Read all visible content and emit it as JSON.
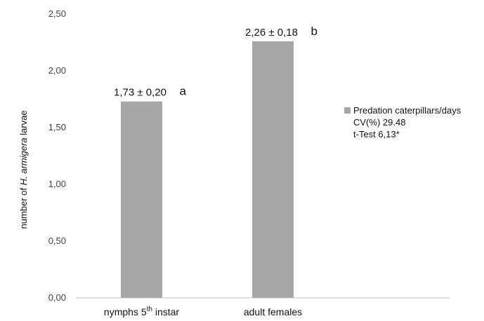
{
  "chart_data": {
    "type": "bar",
    "categories": [
      "nymphs 5th instar",
      "adult females"
    ],
    "category_parts": [
      {
        "main": "nymphs 5",
        "sup": "th",
        "rest": " instar"
      },
      {
        "main": "adult females",
        "sup": "",
        "rest": ""
      }
    ],
    "values": [
      1.73,
      2.26
    ],
    "data_labels": [
      "1,73 ± 0,20",
      "2,26 ± 0,18"
    ],
    "significance_letters": [
      "a",
      "b"
    ],
    "ylabel": {
      "before": "number of ",
      "italic": "H. armigera",
      "after": " larvae"
    },
    "ylim": [
      0,
      2.5
    ],
    "yticks": [
      0,
      0.5,
      1.0,
      1.5,
      2.0,
      2.5
    ],
    "ytick_labels": [
      "0,00",
      "0,50",
      "1,00",
      "1,50",
      "2,00",
      "2,50"
    ],
    "grid": false,
    "legend_position": "right",
    "series": [
      {
        "name": "Predation caterpillars/days",
        "values": [
          1.73,
          2.26
        ]
      }
    ],
    "legend_notes": [
      "CV(%) 29.48",
      "t-Test 6,13*"
    ],
    "bar_color": "#a6a6a6",
    "axis_color": "#bfbfbf"
  }
}
